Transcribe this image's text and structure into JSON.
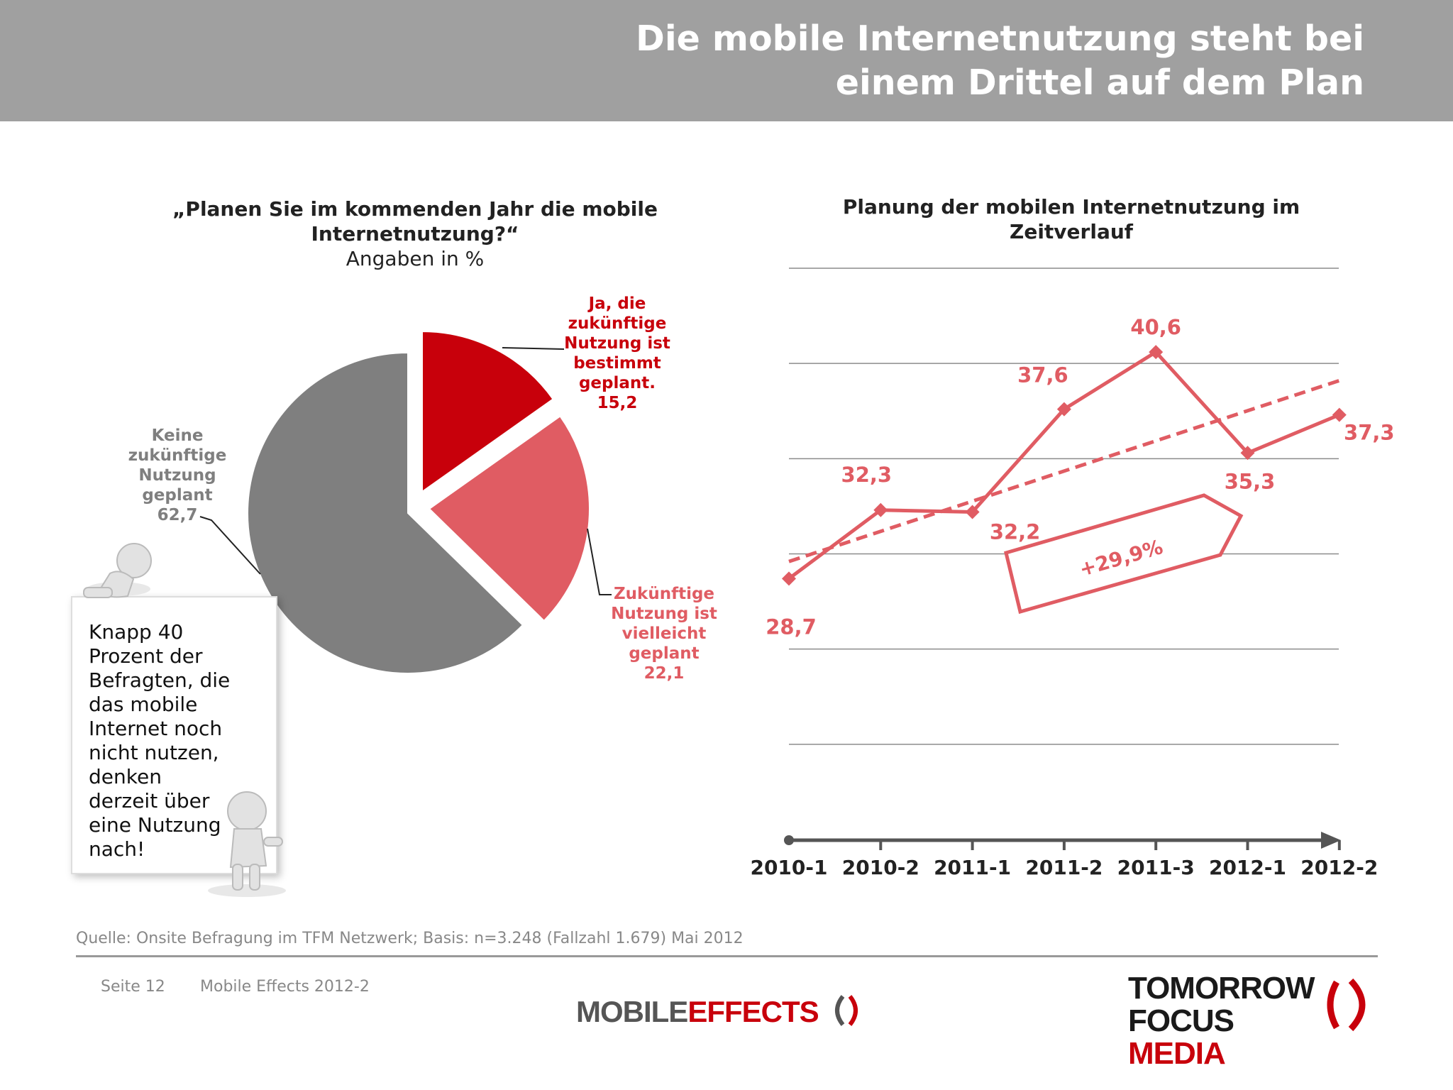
{
  "header": {
    "title_line1": "Die mobile Internetnutzung steht bei",
    "title_line2": "einem Drittel auf dem Plan",
    "bg_color": "#a0a0a0"
  },
  "pie": {
    "title_line1": "„Planen Sie im kommenden Jahr die mobile",
    "title_line2": "Internetnutzung?“",
    "subtitle": "Angaben in %",
    "label_yes": [
      "Ja, die",
      "zukünftige",
      "Nutzung ist",
      "bestimmt",
      "geplant.",
      "15,2"
    ],
    "label_maybe": [
      "Zukünftige",
      "Nutzung ist",
      "vielleicht",
      "geplant",
      "22,1"
    ],
    "label_no": [
      "Keine",
      "zukünftige",
      "Nutzung",
      "geplant",
      "62,7"
    ]
  },
  "line": {
    "title_line1": "Planung der mobilen Internetnutzung im",
    "title_line2": "Zeitverlauf",
    "growth_label": "+29,9%"
  },
  "note": {
    "lines": [
      "Knapp 40",
      "Prozent der",
      "Befragten, die",
      "das mobile",
      "Internet noch",
      "nicht nutzen,",
      "denken",
      "derzeit über",
      "eine Nutzung",
      "nach!"
    ]
  },
  "footer": {
    "source": "Quelle: Onsite Befragung im TFM Netzwerk; Basis: n=3.248 (Fallzahl 1.679) Mai 2012",
    "page": "Seite 12",
    "doc": "Mobile Effects 2012-2",
    "logo_me_1": "MOBILE",
    "logo_me_2": "EFFECTS",
    "logo_tfm_1": "TOMORROW",
    "logo_tfm_2": "FOCUS",
    "logo_tfm_3": "MEDIA"
  },
  "chart_data": [
    {
      "type": "pie",
      "slices": [
        {
          "label": "Ja, die zukünftige Nutzung ist bestimmt geplant.",
          "value": 15.2,
          "value_label": "15,2",
          "color": "#c8000b"
        },
        {
          "label": "Zukünftige Nutzung ist vielleicht geplant",
          "value": 22.1,
          "value_label": "22,1",
          "color": "#e05c63"
        },
        {
          "label": "Keine zukünftige Nutzung geplant",
          "value": 62.7,
          "value_label": "62,7",
          "color": "#7f7f7f"
        }
      ]
    },
    {
      "type": "line",
      "categories": [
        "2010-1",
        "2010-2",
        "2011-1",
        "2011-2",
        "2011-3",
        "2012-1",
        "2012-2"
      ],
      "values": [
        28.7,
        32.3,
        32.2,
        37.6,
        40.6,
        35.3,
        37.3
      ],
      "value_labels": [
        "28,7",
        "32,3",
        "32,2",
        "37,6",
        "40,6",
        "35,3",
        "37,3"
      ],
      "trend": [
        29.6,
        39.1
      ],
      "ylim": [
        15,
        45
      ],
      "grid": true,
      "color": "#e05c63"
    }
  ]
}
